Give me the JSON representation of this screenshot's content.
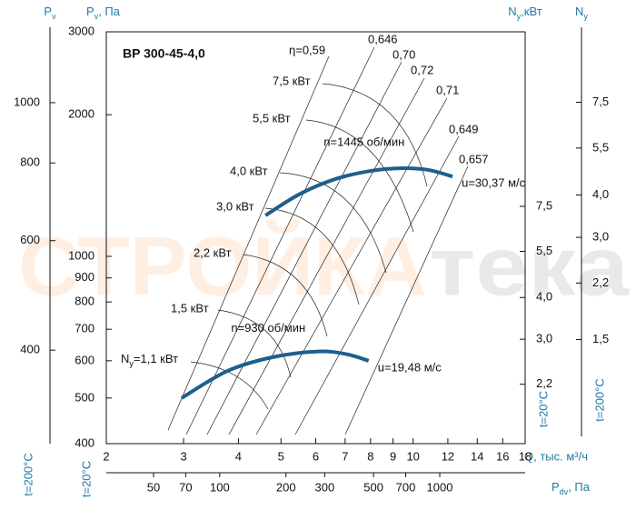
{
  "chart_data": {
    "type": "line",
    "title": "BP 300-45-4,0",
    "watermark": [
      "СТРОЙКА",
      "тека"
    ],
    "xscale": "log",
    "yscale": "log",
    "xlabel": "Q, тыс. м³/ч",
    "ylabel": {
      "base": "P",
      "sub": "v",
      "rest": ", Па"
    },
    "ytemp": "t=20°C",
    "xlim": [
      2,
      18
    ],
    "xticks": [
      2,
      3,
      4,
      5,
      6,
      7,
      8,
      9,
      10,
      12,
      14,
      16,
      18
    ],
    "ylim": [
      400,
      3000
    ],
    "yticks": [
      400,
      500,
      600,
      700,
      800,
      900,
      1000,
      2000,
      3000
    ],
    "series": [
      {
        "name": "n=1445 об/мин",
        "end_label": "u=30,37 м/с",
        "color": "#1d5f8e",
        "x": [
          4.61,
          5.53,
          6.7,
          8.11,
          9.36,
          10.8,
          12.3
        ],
        "values": [
          1222,
          1358,
          1463,
          1522,
          1539,
          1527,
          1478
        ]
      },
      {
        "name": "n=930 об/мин",
        "end_label": "u=19,48 м/с",
        "color": "#1d5f8e",
        "x": [
          2.97,
          3.78,
          4.8,
          6.08,
          7.03,
          7.92
        ],
        "values": [
          500,
          571,
          611,
          628,
          620,
          600
        ]
      }
    ],
    "efficiency_labels": [
      "η=0,59",
      "0,646",
      "0,70",
      "0,72",
      "0,71",
      "0,649",
      "0,657"
    ],
    "power_labels": [
      "7,5 кВт",
      "5,5 кВт",
      "4,0 кВт",
      "3,0 кВт",
      "2,2 кВт",
      "1,5 кВт"
    ],
    "power_label_min": {
      "base": "N",
      "sub": "y",
      "rest": "=1,1 кВт"
    },
    "pv200_axis": {
      "title": {
        "base": "P",
        "sub": "v"
      },
      "temp": "t=200°C",
      "scale": "log",
      "lim": [
        283,
        1300
      ],
      "ticks": [
        400,
        600,
        800,
        1000
      ]
    },
    "ny20_axis": {
      "title": {
        "base": "N",
        "sub": "y",
        "rest": ",кВт"
      },
      "temp": "t=20°C",
      "scale": "log",
      "lim": [
        1.46,
        25
      ],
      "ticks": [
        {
          "value": 2.2,
          "label": "2,2"
        },
        {
          "value": 3.0,
          "label": "3,0"
        },
        {
          "value": 4.0,
          "label": "4,0"
        },
        {
          "value": 5.5,
          "label": "5,5"
        },
        {
          "value": 7.5,
          "label": "7,5"
        }
      ]
    },
    "ny200_axis": {
      "title": {
        "base": "N",
        "sub": "y"
      },
      "temp": "t=200°C",
      "scale": "log",
      "lim": [
        0.74,
        12.1
      ],
      "ticks": [
        {
          "value": 1.5,
          "label": "1,5"
        },
        {
          "value": 2.2,
          "label": "2,2"
        },
        {
          "value": 3.0,
          "label": "3,0"
        },
        {
          "value": 4.0,
          "label": "4,0"
        },
        {
          "value": 5.5,
          "label": "5,5"
        },
        {
          "value": 7.5,
          "label": "7,5"
        }
      ]
    },
    "pdv_axis": {
      "title": {
        "base": "P",
        "sub": "dv",
        "rest": ", Па"
      },
      "scale": "log",
      "lim": [
        30.5,
        2445
      ],
      "ticks": [
        50,
        70,
        100,
        200,
        300,
        500,
        700,
        1000
      ]
    }
  }
}
